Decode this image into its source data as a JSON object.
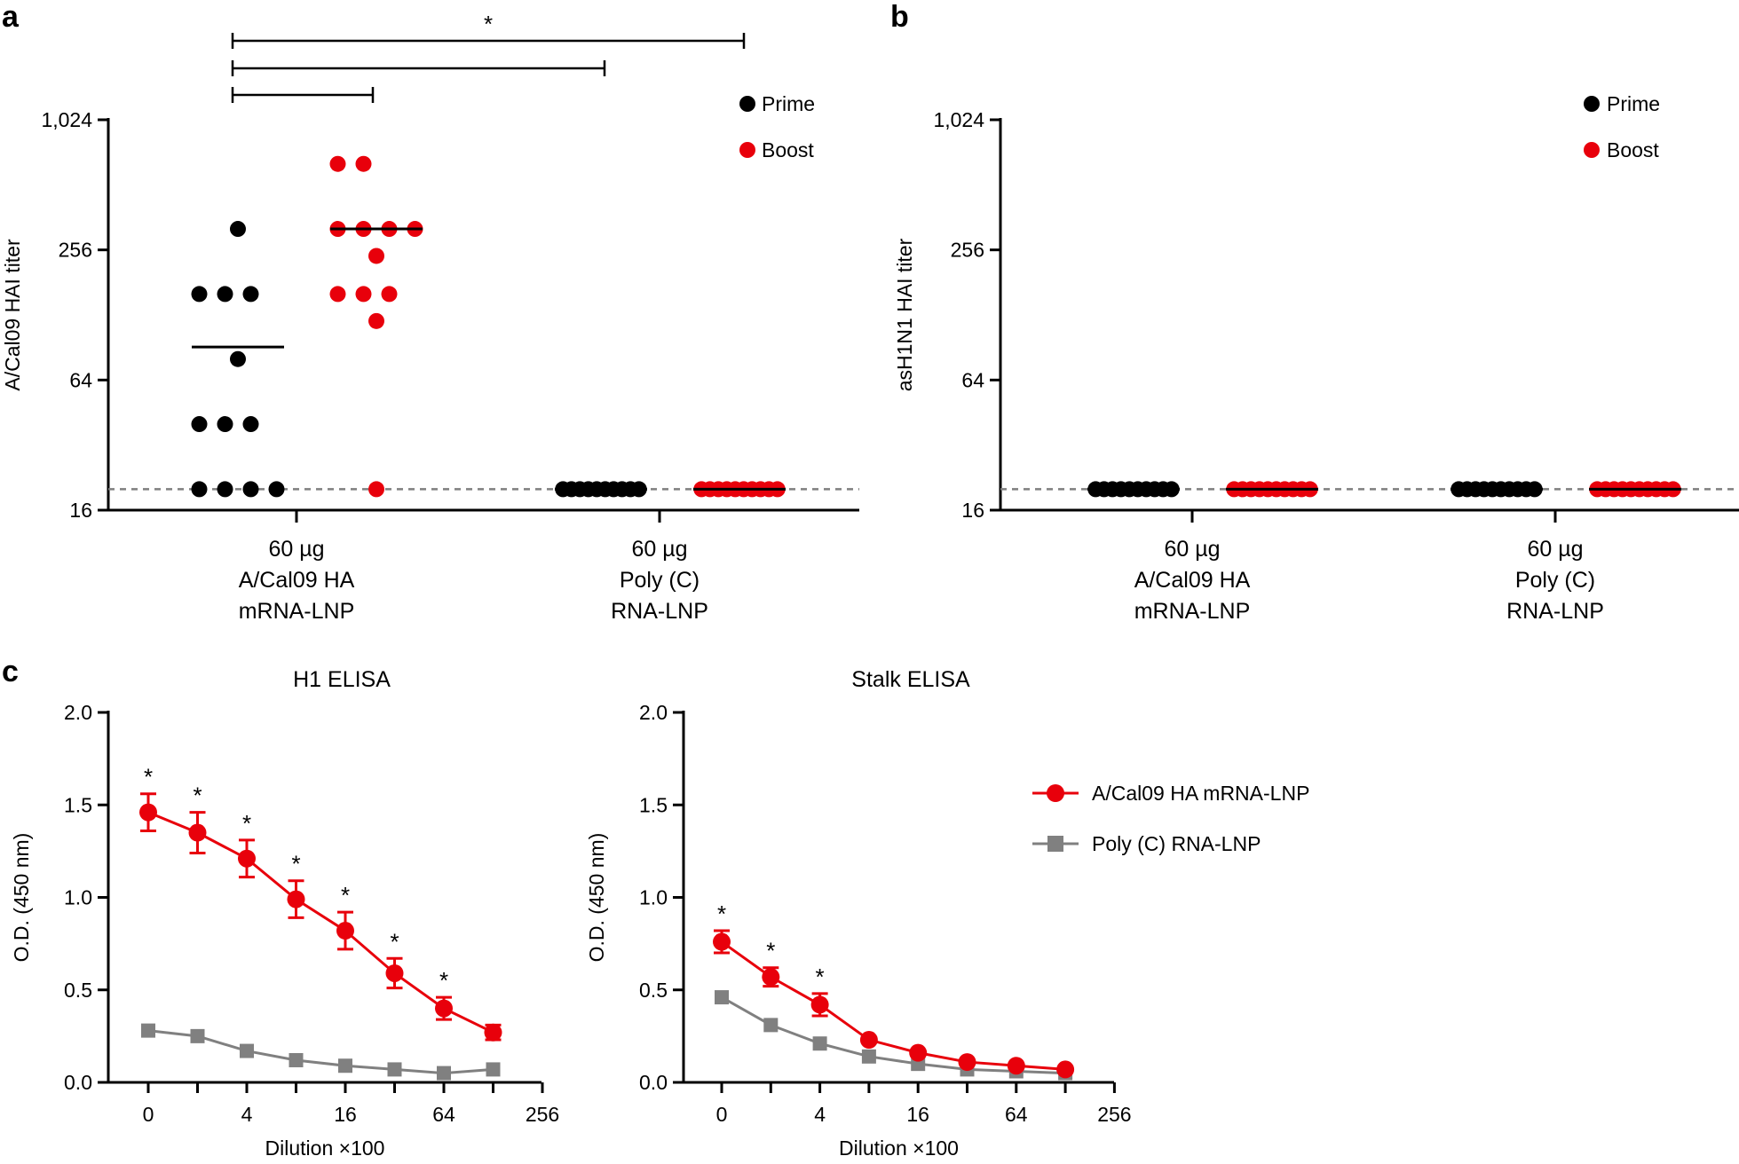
{
  "panels": {
    "a": "a",
    "b": "b",
    "c": "c"
  },
  "colors": {
    "prime": "#000000",
    "boost": "#e8000b",
    "hamrna": "#e8000b",
    "polyc": "#808080",
    "dashed": "#7f7f7f"
  },
  "legend_ab": {
    "prime": "Prime",
    "boost": "Boost"
  },
  "legend_c": {
    "hamrna": "A/Cal09 HA mRNA-LNP",
    "polyc": "Poly (C) RNA-LNP"
  },
  "chart_data": [
    {
      "id": "a",
      "type": "scatter",
      "title": "",
      "ylabel": "A/Cal09 HAI titer",
      "yscale": "log2",
      "ylim": [
        16,
        1024
      ],
      "yticks": [
        16,
        64,
        256,
        1024
      ],
      "ytick_labels": [
        "16",
        "64",
        "256",
        "1,024"
      ],
      "detection_limit": 20,
      "groups": [
        {
          "label_lines": [
            "60 µg",
            "A/Cal09 HA",
            "mRNA-LNP"
          ]
        },
        {
          "label_lines": [
            "60 µg",
            "Poly (C)",
            "RNA-LNP"
          ]
        }
      ],
      "series": [
        {
          "name": "Prime",
          "group": 0,
          "mean": 91,
          "values": [
            [
              0,
              160
            ],
            [
              1,
              160
            ],
            [
              2,
              160
            ],
            [
              0,
              40
            ],
            [
              1,
              40
            ],
            [
              2,
              40
            ],
            [
              0,
              20
            ],
            [
              1,
              20
            ],
            [
              2,
              20
            ],
            [
              3,
              20
            ],
            [
              1.5,
              320
            ],
            [
              1.5,
              80
            ]
          ]
        },
        {
          "name": "Boost",
          "group": 0,
          "mean": 320,
          "values": [
            [
              0,
              640
            ],
            [
              1,
              640
            ],
            [
              0,
              320
            ],
            [
              1,
              320
            ],
            [
              2,
              320
            ],
            [
              3,
              320
            ],
            [
              1.5,
              240
            ],
            [
              0,
              160
            ],
            [
              1,
              160
            ],
            [
              2,
              160
            ],
            [
              1.5,
              120
            ],
            [
              1.5,
              20
            ]
          ]
        },
        {
          "name": "Prime",
          "group": 1,
          "mean": 20,
          "n": 10,
          "values": [
            20,
            20,
            20,
            20,
            20,
            20,
            20,
            20,
            20,
            20
          ]
        },
        {
          "name": "Boost",
          "group": 1,
          "mean": 20,
          "n": 10,
          "values": [
            20,
            20,
            20,
            20,
            20,
            20,
            20,
            20,
            20,
            20
          ]
        }
      ],
      "significance": [
        {
          "from": "Prime 60 µg A/Cal09 HA mRNA-LNP",
          "to": "Boost 60 µg A/Cal09 HA mRNA-LNP",
          "label": ""
        },
        {
          "from": "Prime 60 µg A/Cal09 HA mRNA-LNP",
          "to": "Prime 60 µg Poly (C) RNA-LNP",
          "label": ""
        },
        {
          "from": "Prime 60 µg A/Cal09 HA mRNA-LNP",
          "to": "Boost 60 µg Poly (C) RNA-LNP",
          "label": "*"
        }
      ]
    },
    {
      "id": "b",
      "type": "scatter",
      "title": "",
      "ylabel": "asH1N1 HAI titer",
      "yscale": "log2",
      "ylim": [
        16,
        1024
      ],
      "yticks": [
        16,
        64,
        256,
        1024
      ],
      "ytick_labels": [
        "16",
        "64",
        "256",
        "1,024"
      ],
      "detection_limit": 20,
      "groups": [
        {
          "label_lines": [
            "60 µg",
            "A/Cal09 HA",
            "mRNA-LNP"
          ]
        },
        {
          "label_lines": [
            "60 µg",
            "Poly (C)",
            "RNA-LNP"
          ]
        }
      ],
      "series": [
        {
          "name": "Prime",
          "group": 0,
          "mean": 20,
          "n": 10,
          "values": [
            20,
            20,
            20,
            20,
            20,
            20,
            20,
            20,
            20,
            20
          ]
        },
        {
          "name": "Boost",
          "group": 0,
          "mean": 20,
          "n": 10,
          "values": [
            20,
            20,
            20,
            20,
            20,
            20,
            20,
            20,
            20,
            20
          ]
        },
        {
          "name": "Prime",
          "group": 1,
          "mean": 20,
          "n": 10,
          "values": [
            20,
            20,
            20,
            20,
            20,
            20,
            20,
            20,
            20,
            20
          ]
        },
        {
          "name": "Boost",
          "group": 1,
          "mean": 20,
          "n": 10,
          "values": [
            20,
            20,
            20,
            20,
            20,
            20,
            20,
            20,
            20,
            20
          ]
        }
      ]
    },
    {
      "id": "c1",
      "type": "line",
      "title": "H1 ELISA",
      "xlabel": "Dilution ×100",
      "ylabel": "O.D. (450 nm)",
      "ylim": [
        0,
        2.0
      ],
      "yticks": [
        0.0,
        0.5,
        1.0,
        1.5,
        2.0
      ],
      "ytick_labels": [
        "0.0",
        "0.5",
        "1.0",
        "1.5",
        "2.0"
      ],
      "xticks_pos": [
        0,
        2,
        4,
        6,
        8
      ],
      "xtick_labels": [
        "0",
        "4",
        "16",
        "64",
        "256"
      ],
      "series": [
        {
          "name": "A/Cal09 HA mRNA-LNP",
          "marker": "circle",
          "x": [
            0,
            1,
            2,
            3,
            4,
            5,
            6,
            7
          ],
          "y": [
            1.46,
            1.35,
            1.21,
            0.99,
            0.82,
            0.59,
            0.4,
            0.27
          ],
          "err": [
            0.1,
            0.11,
            0.1,
            0.1,
            0.1,
            0.08,
            0.06,
            0.04
          ],
          "sig": [
            "*",
            "*",
            "*",
            "*",
            "*",
            "*",
            "*",
            ""
          ]
        },
        {
          "name": "Poly (C) RNA-LNP",
          "marker": "square",
          "x": [
            0,
            1,
            2,
            3,
            4,
            5,
            6,
            7
          ],
          "y": [
            0.28,
            0.25,
            0.17,
            0.12,
            0.09,
            0.07,
            0.05,
            0.07
          ],
          "err": [
            0,
            0,
            0,
            0,
            0,
            0,
            0,
            0
          ]
        }
      ]
    },
    {
      "id": "c2",
      "type": "line",
      "title": "Stalk ELISA",
      "xlabel": "Dilution ×100",
      "ylabel": "O.D. (450 nm)",
      "ylim": [
        0,
        2.0
      ],
      "yticks": [
        0.0,
        0.5,
        1.0,
        1.5,
        2.0
      ],
      "ytick_labels": [
        "0.0",
        "0.5",
        "1.0",
        "1.5",
        "2.0"
      ],
      "xticks_pos": [
        0,
        2,
        4,
        6,
        8
      ],
      "xtick_labels": [
        "0",
        "4",
        "16",
        "64",
        "256"
      ],
      "series": [
        {
          "name": "A/Cal09 HA mRNA-LNP",
          "marker": "circle",
          "x": [
            0,
            1,
            2,
            3,
            4,
            5,
            6,
            7
          ],
          "y": [
            0.76,
            0.57,
            0.42,
            0.23,
            0.16,
            0.11,
            0.09,
            0.07
          ],
          "err": [
            0.06,
            0.05,
            0.06,
            0,
            0,
            0,
            0,
            0
          ],
          "sig": [
            "*",
            "*",
            "*",
            "",
            "",
            "",
            "",
            ""
          ]
        },
        {
          "name": "Poly (C) RNA-LNP",
          "marker": "square",
          "x": [
            0,
            1,
            2,
            3,
            4,
            5,
            6,
            7
          ],
          "y": [
            0.46,
            0.31,
            0.21,
            0.14,
            0.1,
            0.07,
            0.06,
            0.05
          ],
          "err": [
            0,
            0,
            0,
            0,
            0,
            0,
            0,
            0
          ]
        }
      ]
    }
  ]
}
